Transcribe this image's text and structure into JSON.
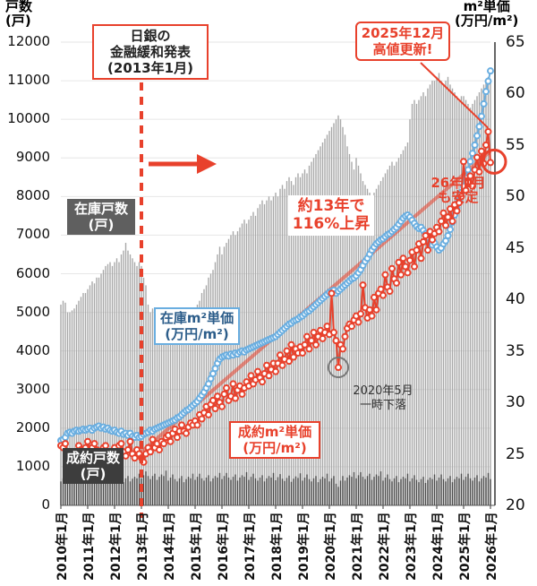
{
  "chart_data": {
    "type": "bar+line",
    "left_axis": {
      "label_line1": "戸数",
      "label_line2": "(戸)",
      "range": [
        0,
        12000
      ],
      "ticks": [
        "0",
        "1000",
        "2000",
        "3000",
        "4000",
        "5000",
        "6000",
        "7000",
        "8000",
        "9000",
        "10000",
        "11000",
        "12000"
      ]
    },
    "right_axis": {
      "label_line1": "m²単価",
      "label_line2": "(万円/m²)",
      "range": [
        20,
        65
      ],
      "ticks": [
        "20",
        "25",
        "30",
        "35",
        "40",
        "45",
        "50",
        "55",
        "60",
        "65"
      ]
    },
    "x_range": [
      "2010-01",
      "2026-01"
    ],
    "x_ticks": [
      "2010年1月",
      "2011年1月",
      "2012年1月",
      "2013年1月",
      "2014年1月",
      "2015年1月",
      "2016年1月",
      "2017年1月",
      "2018年1月",
      "2019年1月",
      "2020年1月",
      "2021年1月",
      "2022年1月",
      "2023年1月",
      "2024年1月",
      "2025年1月",
      "2026年1月"
    ],
    "grid": true,
    "colors": {
      "inventory_bar": "#a8a8a8",
      "contract_bar": "#4a4a4a",
      "inventory_price": "#6aaee0",
      "contract_price": "#e8412c",
      "accent": "#e8412c"
    },
    "series": [
      {
        "name": "在庫戸数(戸)",
        "type": "bar",
        "axis": "left",
        "values": [
          5200,
          5300,
          5250,
          5000,
          5000,
          5050,
          5100,
          5200,
          5300,
          5400,
          5500,
          5500,
          5600,
          5700,
          5800,
          5750,
          5900,
          5900,
          6000,
          6100,
          6200,
          6250,
          6300,
          6200,
          6300,
          6400,
          6300,
          6500,
          6600,
          6800,
          6600,
          6500,
          6400,
          6300,
          6200,
          6300,
          6200,
          5900,
          5700,
          5200,
          5000,
          5100,
          5000,
          4900,
          4800,
          4700,
          4600,
          4500,
          4600,
          4700,
          4550,
          4500,
          4600,
          4650,
          4700,
          4750,
          4800,
          4900,
          5000,
          5050,
          5100,
          5200,
          5300,
          5500,
          5600,
          5700,
          5900,
          6000,
          6100,
          6300,
          6500,
          6700,
          6500,
          6700,
          6800,
          6900,
          7000,
          7100,
          7000,
          7100,
          7200,
          7300,
          7400,
          7300,
          7400,
          7500,
          7600,
          7500,
          7700,
          7800,
          7900,
          7800,
          7900,
          8000,
          7900,
          8000,
          8100,
          8000,
          8200,
          8300,
          8200,
          8400,
          8500,
          8400,
          8300,
          8500,
          8600,
          8500,
          8600,
          8700,
          8600,
          8800,
          8900,
          9000,
          9100,
          9200,
          9300,
          9400,
          9500,
          9600,
          9700,
          9800,
          9900,
          10000,
          10100,
          10000,
          9800,
          9600,
          9300,
          9100,
          8900,
          8700,
          9000,
          8800,
          8600,
          8400,
          8300,
          8200,
          8100,
          8000,
          8100,
          8200,
          8300,
          8400,
          8500,
          8600,
          8700,
          8800,
          8900,
          8800,
          8900,
          9000,
          9100,
          9200,
          9300,
          9400,
          10000,
          10400,
          10500,
          10400,
          10500,
          10600,
          10700,
          10600,
          10800,
          10900,
          11000,
          11000,
          11100,
          11200,
          11000,
          10900,
          11000,
          11100,
          10900,
          10800,
          10700,
          10600,
          10500,
          10600,
          10600,
          10500,
          10400,
          10300,
          10400,
          10500,
          10600,
          10700,
          10800,
          10900,
          11000,
          11100,
          11000
        ]
      },
      {
        "name": "成約戸数(戸)",
        "type": "bar",
        "axis": "left",
        "values": [
          620,
          700,
          760,
          650,
          580,
          640,
          700,
          560,
          660,
          720,
          680,
          820,
          600,
          680,
          750,
          640,
          560,
          660,
          720,
          590,
          650,
          700,
          660,
          760,
          640,
          720,
          800,
          660,
          600,
          700,
          760,
          620,
          690,
          740,
          700,
          820,
          700,
          780,
          880,
          760,
          680,
          760,
          820,
          660,
          740,
          800,
          760,
          900,
          640,
          720,
          800,
          680,
          620,
          700,
          760,
          600,
          680,
          740,
          700,
          820,
          660,
          740,
          820,
          700,
          640,
          720,
          780,
          620,
          700,
          760,
          720,
          840,
          680,
          760,
          840,
          720,
          660,
          740,
          800,
          640,
          720,
          780,
          740,
          860,
          660,
          740,
          820,
          700,
          640,
          720,
          780,
          620,
          700,
          760,
          720,
          840,
          650,
          730,
          810,
          690,
          630,
          710,
          770,
          610,
          690,
          750,
          710,
          830,
          640,
          720,
          800,
          680,
          620,
          700,
          760,
          600,
          680,
          740,
          700,
          820,
          620,
          700,
          760,
          560,
          480,
          640,
          760,
          640,
          720,
          780,
          740,
          860,
          700,
          780,
          860,
          740,
          680,
          760,
          820,
          660,
          740,
          800,
          760,
          880,
          640,
          720,
          800,
          680,
          620,
          700,
          760,
          600,
          680,
          740,
          700,
          820,
          620,
          700,
          780,
          660,
          600,
          680,
          740,
          580,
          660,
          720,
          680,
          800,
          640,
          720,
          800,
          680,
          620,
          700,
          760,
          600,
          680,
          740,
          700,
          820,
          660,
          740,
          820,
          700,
          640,
          720,
          780,
          620,
          700,
          760,
          720,
          840,
          680
        ]
      },
      {
        "name": "在庫m²単価(万円/m²)",
        "type": "line",
        "axis": "right",
        "values": [
          26.3,
          26.4,
          26.6,
          27.0,
          27.1,
          27.0,
          27.2,
          27.3,
          27.2,
          27.3,
          27.4,
          27.3,
          27.4,
          27.5,
          27.3,
          27.5,
          27.6,
          27.7,
          27.5,
          27.6,
          27.4,
          27.5,
          27.3,
          27.2,
          27.3,
          27.1,
          27.0,
          27.2,
          26.9,
          27.0,
          26.8,
          27.0,
          26.7,
          26.6,
          26.8,
          26.6,
          26.7,
          26.9,
          27.0,
          27.1,
          27.3,
          27.2,
          27.4,
          27.5,
          27.6,
          27.7,
          27.8,
          27.9,
          28.0,
          28.1,
          28.2,
          28.3,
          28.5,
          28.6,
          28.8,
          29.0,
          29.2,
          29.3,
          29.5,
          29.7,
          29.9,
          30.1,
          30.4,
          30.7,
          31.0,
          31.4,
          31.8,
          32.3,
          32.8,
          33.3,
          33.8,
          34.2,
          34.4,
          34.5,
          34.6,
          34.5,
          34.7,
          34.6,
          34.8,
          34.7,
          34.9,
          35.0,
          34.9,
          35.1,
          35.2,
          35.3,
          35.4,
          35.5,
          35.6,
          35.7,
          35.8,
          35.9,
          36.0,
          36.1,
          36.2,
          36.3,
          36.4,
          36.6,
          36.8,
          37.0,
          37.2,
          37.4,
          37.6,
          37.7,
          37.9,
          38.0,
          38.1,
          38.3,
          38.4,
          38.6,
          38.8,
          38.9,
          39.1,
          39.3,
          39.5,
          39.7,
          39.9,
          40.1,
          40.3,
          40.5,
          40.7,
          40.8,
          40.9,
          40.6,
          40.8,
          41.0,
          41.2,
          41.4,
          41.6,
          41.8,
          42.0,
          42.1,
          42.3,
          42.6,
          42.9,
          43.3,
          43.7,
          44.0,
          44.4,
          44.8,
          45.1,
          45.4,
          45.6,
          45.8,
          45.9,
          46.1,
          46.3,
          46.4,
          46.6,
          46.8,
          47.0,
          47.3,
          47.6,
          47.9,
          48.1,
          48.2,
          48.0,
          47.7,
          47.4,
          47.1,
          46.9,
          47.0,
          46.7,
          46.4,
          46.0,
          45.6,
          45.3,
          45.5,
          45.1,
          44.8,
          45.0,
          45.4,
          45.7,
          46.2,
          46.8,
          47.5,
          48.2,
          48.9,
          49.6,
          50.4,
          51.0,
          51.8,
          52.6,
          53.4,
          54.2,
          55.0,
          55.9,
          56.8,
          57.8,
          59.0,
          60.2,
          61.2,
          62.2
        ]
      },
      {
        "name": "成約m²単価(万円/m²)",
        "type": "line",
        "axis": "right",
        "values": [
          25.8,
          25.6,
          26.0,
          25.2,
          24.6,
          23.8,
          24.2,
          25.0,
          25.8,
          25.4,
          25.0,
          25.6,
          26.2,
          25.2,
          25.6,
          26.0,
          25.4,
          24.8,
          25.2,
          25.6,
          25.8,
          25.0,
          24.6,
          25.2,
          25.6,
          24.8,
          25.8,
          26.0,
          25.2,
          24.8,
          25.4,
          26.2,
          25.0,
          24.6,
          25.4,
          25.0,
          24.6,
          24.2,
          25.0,
          25.6,
          25.2,
          26.4,
          25.6,
          26.0,
          25.4,
          26.2,
          26.0,
          26.6,
          26.8,
          26.2,
          27.0,
          27.4,
          26.6,
          27.2,
          27.8,
          27.2,
          27.0,
          27.6,
          28.0,
          27.8,
          28.2,
          27.8,
          28.8,
          28.4,
          29.0,
          29.6,
          28.8,
          29.8,
          30.2,
          29.4,
          30.6,
          30.0,
          29.6,
          30.8,
          31.4,
          30.2,
          30.6,
          31.8,
          30.4,
          31.2,
          31.6,
          30.8,
          31.4,
          32.0,
          31.6,
          32.6,
          31.8,
          32.2,
          33.0,
          32.4,
          32.0,
          32.8,
          33.6,
          32.6,
          33.2,
          33.8,
          33.0,
          33.8,
          34.6,
          33.6,
          34.2,
          35.0,
          34.0,
          35.6,
          34.4,
          35.2,
          34.8,
          35.4,
          34.8,
          35.6,
          36.4,
          35.2,
          36.0,
          36.8,
          35.6,
          36.4,
          37.0,
          36.2,
          36.8,
          37.4,
          36.6,
          40.6,
          36.8,
          36.0,
          33.4,
          35.6,
          35.2,
          36.4,
          37.2,
          37.6,
          37.4,
          38.0,
          38.4,
          37.8,
          38.6,
          41.4,
          39.2,
          38.2,
          39.0,
          38.4,
          40.2,
          39.0,
          40.6,
          41.0,
          40.4,
          42.4,
          41.2,
          40.8,
          43.0,
          42.0,
          41.6,
          43.6,
          42.4,
          44.0,
          43.2,
          42.6,
          43.8,
          44.6,
          43.2,
          44.8,
          45.4,
          44.0,
          45.6,
          46.2,
          44.8,
          46.6,
          45.8,
          46.4,
          47.0,
          46.6,
          47.6,
          48.4,
          47.2,
          48.0,
          48.8,
          47.6,
          49.2,
          48.6,
          49.4,
          50.0,
          53.4,
          50.6,
          51.4,
          52.0,
          51.0,
          52.6,
          53.8,
          52.4,
          54.4,
          53.2,
          55.0,
          56.3,
          53.3
        ]
      }
    ],
    "trend_line": {
      "axis": "right",
      "from": [
        "2013-01",
        25.2
      ],
      "to": [
        "2026-01",
        54.4
      ]
    },
    "annotations": {
      "boj": {
        "line1": "日銀の",
        "line2": "金融緩和発表",
        "line3": "(2013年1月)",
        "date": "2013-01"
      },
      "inventory_count": {
        "line1": "在庫戸数",
        "line2": "(戸)"
      },
      "inventory_price": {
        "line1": "在庫m²単価",
        "line2": "(万円/m²)"
      },
      "contract_price": {
        "line1": "成約m²単価",
        "line2": "(万円/m²)"
      },
      "contract_count": {
        "line1": "成約戸数",
        "line2": "(戸)"
      },
      "rise": {
        "line1": "約13年で",
        "line2": "116%上昇"
      },
      "covid": {
        "line1": "2020年5月",
        "line2": "一時下落"
      },
      "high": {
        "line1": "2025年12月",
        "line2": "高値更新!"
      },
      "stable": {
        "line1": "26年1月",
        "line2": "も安定"
      }
    }
  }
}
